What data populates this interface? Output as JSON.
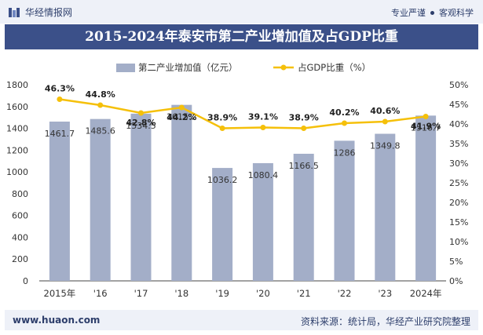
{
  "header": {
    "brand": "华经情报网",
    "tagline_left": "专业严谨",
    "tagline_right": "客观科学"
  },
  "title": "2015-2024年泰安市第二产业增加值及占GDP比重",
  "footer": {
    "url": "www.huaon.com",
    "source": "资料来源：统计局，华经产业研究院整理"
  },
  "colors": {
    "bar": "#a3aec8",
    "line": "#f5c00a",
    "title_bg": "#3b5089",
    "text": "#333333"
  },
  "chart_data": {
    "type": "bar",
    "categories": [
      "2015年",
      "'16",
      "'17",
      "'18",
      "'19",
      "'20",
      "'21",
      "'22",
      "'23",
      "2024年"
    ],
    "series": [
      {
        "name": "第二产业增加值（亿元）",
        "type": "bar",
        "axis": "left",
        "values": [
          1461.7,
          1485.6,
          1534.5,
          1615.2,
          1036.2,
          1080.4,
          1166.5,
          1286,
          1349.8,
          1516.7
        ],
        "labels": [
          "1461.7",
          "1485.6",
          "1534.5",
          "1615.2",
          "1036.2",
          "1080.4",
          "1166.5",
          "1286",
          "1349.8",
          "1516.7"
        ]
      },
      {
        "name": "占GDP比重（%）",
        "type": "line",
        "axis": "right",
        "values": [
          46.3,
          44.8,
          42.8,
          44.2,
          38.9,
          39.1,
          38.9,
          40.2,
          40.6,
          41.9
        ],
        "labels": [
          "46.3%",
          "44.8%",
          "42.8%",
          "44.2%",
          "38.9%",
          "39.1%",
          "38.9%",
          "40.2%",
          "40.6%",
          "41.9%"
        ]
      }
    ],
    "y_left": {
      "min": 0,
      "max": 1800,
      "ticks": [
        "0",
        "200",
        "400",
        "600",
        "800",
        "1000",
        "1200",
        "1400",
        "1600",
        "1800"
      ]
    },
    "y_right": {
      "min": 0,
      "max": 50,
      "ticks": [
        "0%",
        "5%",
        "10%",
        "15%",
        "20%",
        "25%",
        "30%",
        "35%",
        "40%",
        "45%",
        "50%"
      ]
    },
    "legend_position": "top-center",
    "grid": false
  }
}
